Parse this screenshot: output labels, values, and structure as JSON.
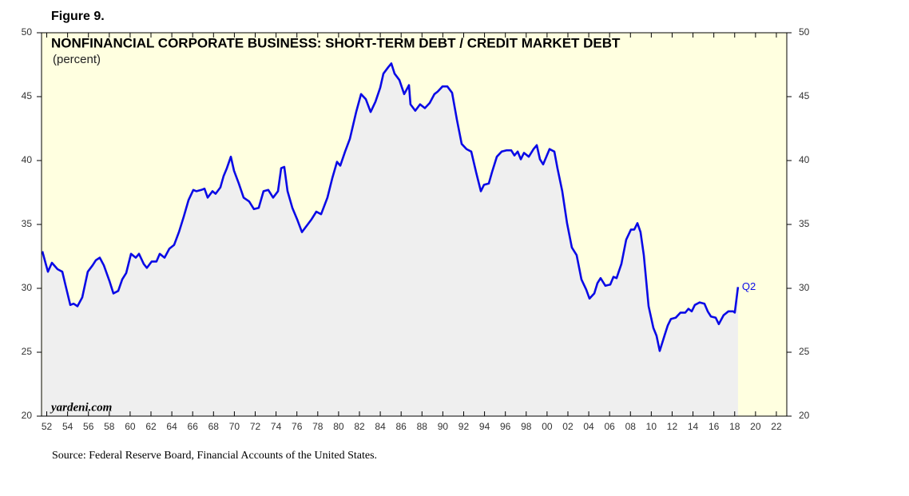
{
  "chart_data": {
    "type": "area-line",
    "figure_label": "Figure 9.",
    "title": "NONFINANCIAL CORPORATE BUSINESS: SHORT-TERM DEBT / CREDIT MARKET DEBT",
    "subtitle": "(percent)",
    "watermark": "yardeni.com",
    "end_label": "Q2",
    "source": "Source: Federal Reserve Board, Financial Accounts of the United States.",
    "color": "#0a0ae6",
    "area_color": "#efefef",
    "background": "#ffffe0",
    "x": [
      1951.58,
      1952.11,
      1952.5,
      1953.03,
      1953.49,
      1953.8,
      1954.26,
      1954.57,
      1954.95,
      1955.41,
      1955.94,
      1956.4,
      1956.71,
      1957.09,
      1957.48,
      1958.01,
      1958.4,
      1958.86,
      1959.24,
      1959.62,
      1960.08,
      1960.54,
      1960.85,
      1961.31,
      1961.61,
      1962.07,
      1962.53,
      1962.84,
      1963.3,
      1963.76,
      1964.22,
      1964.68,
      1965.14,
      1965.6,
      1966.06,
      1966.37,
      1966.83,
      1967.13,
      1967.44,
      1967.9,
      1968.2,
      1968.66,
      1968.97,
      1969.28,
      1969.66,
      1969.97,
      1970.43,
      1970.89,
      1971.42,
      1971.88,
      1972.34,
      1972.8,
      1973.26,
      1973.72,
      1974.18,
      1974.49,
      1974.79,
      1975.1,
      1975.56,
      1976.02,
      1976.48,
      1976.94,
      1977.4,
      1977.86,
      1978.32,
      1978.93,
      1979.39,
      1979.85,
      1980.16,
      1980.62,
      1981.08,
      1981.69,
      1982.15,
      1982.61,
      1983.07,
      1983.53,
      1983.99,
      1984.3,
      1984.76,
      1985.06,
      1985.37,
      1985.83,
      1986.29,
      1986.75,
      1986.9,
      1987.36,
      1987.82,
      1988.28,
      1988.74,
      1989.2,
      1989.51,
      1989.97,
      1990.43,
      1990.89,
      1991.35,
      1991.81,
      1992.27,
      1992.73,
      1993.19,
      1993.65,
      1993.95,
      1994.41,
      1994.72,
      1995.18,
      1995.64,
      1996.1,
      1996.56,
      1996.87,
      1997.18,
      1997.48,
      1997.79,
      1998.25,
      1998.71,
      1999.01,
      1999.32,
      1999.63,
      2000.24,
      2000.7,
      2001.0,
      2001.46,
      2001.92,
      2002.38,
      2002.84,
      2003.3,
      2003.76,
      2004.07,
      2004.53,
      2004.83,
      2005.14,
      2005.6,
      2006.06,
      2006.37,
      2006.67,
      2007.13,
      2007.59,
      2008.05,
      2008.36,
      2008.67,
      2008.97,
      2009.28,
      2009.74,
      2010.2,
      2010.5,
      2010.81,
      2011.27,
      2011.58,
      2011.88,
      2012.34,
      2012.8,
      2013.26,
      2013.57,
      2013.88,
      2014.18,
      2014.64,
      2015.1,
      2015.41,
      2015.72,
      2016.18,
      2016.48,
      2016.94,
      2017.4,
      2017.86,
      2018.01,
      2018.32
    ],
    "values": [
      32.9,
      31.3,
      32.0,
      31.5,
      31.3,
      30.25,
      28.7,
      28.8,
      28.6,
      29.3,
      31.3,
      31.8,
      32.2,
      32.4,
      31.8,
      30.6,
      29.6,
      29.8,
      30.7,
      31.2,
      32.7,
      32.4,
      32.7,
      31.9,
      31.6,
      32.1,
      32.1,
      32.7,
      32.4,
      33.1,
      33.4,
      34.4,
      35.6,
      36.9,
      37.7,
      37.6,
      37.7,
      37.8,
      37.1,
      37.6,
      37.4,
      37.9,
      38.8,
      39.4,
      40.3,
      39.2,
      38.2,
      37.1,
      36.8,
      36.2,
      36.3,
      37.6,
      37.7,
      37.1,
      37.6,
      39.4,
      39.5,
      37.6,
      36.3,
      35.4,
      34.4,
      34.9,
      35.4,
      36.0,
      35.8,
      37.1,
      38.6,
      39.9,
      39.6,
      40.7,
      41.7,
      43.8,
      45.2,
      44.8,
      43.8,
      44.6,
      45.7,
      46.8,
      47.3,
      47.6,
      46.8,
      46.3,
      45.2,
      45.9,
      44.4,
      43.9,
      44.4,
      44.1,
      44.5,
      45.2,
      45.4,
      45.8,
      45.8,
      45.3,
      43.2,
      41.3,
      40.9,
      40.7,
      39.1,
      37.6,
      38.1,
      38.2,
      39.1,
      40.3,
      40.7,
      40.8,
      40.8,
      40.4,
      40.7,
      40.1,
      40.6,
      40.3,
      40.9,
      41.2,
      40.1,
      39.7,
      40.9,
      40.7,
      39.4,
      37.6,
      35.1,
      33.2,
      32.6,
      30.7,
      29.9,
      29.2,
      29.6,
      30.4,
      30.8,
      30.2,
      30.3,
      30.9,
      30.8,
      31.9,
      33.8,
      34.6,
      34.6,
      35.1,
      34.4,
      32.6,
      28.6,
      26.9,
      26.3,
      25.1,
      26.3,
      27.1,
      27.6,
      27.7,
      28.1,
      28.1,
      28.4,
      28.2,
      28.7,
      28.9,
      28.8,
      28.2,
      27.8,
      27.7,
      27.2,
      27.9,
      28.2,
      28.2,
      28.1,
      30.1
    ],
    "xlim": [
      1951.5,
      2023
    ],
    "xticks": [
      {
        "value": 1952,
        "label": "52"
      },
      {
        "value": 1954,
        "label": "54"
      },
      {
        "value": 1956,
        "label": "56"
      },
      {
        "value": 1958,
        "label": "58"
      },
      {
        "value": 1960,
        "label": "60"
      },
      {
        "value": 1962,
        "label": "62"
      },
      {
        "value": 1964,
        "label": "64"
      },
      {
        "value": 1966,
        "label": "66"
      },
      {
        "value": 1968,
        "label": "68"
      },
      {
        "value": 1970,
        "label": "70"
      },
      {
        "value": 1972,
        "label": "72"
      },
      {
        "value": 1974,
        "label": "74"
      },
      {
        "value": 1976,
        "label": "76"
      },
      {
        "value": 1978,
        "label": "78"
      },
      {
        "value": 1980,
        "label": "80"
      },
      {
        "value": 1982,
        "label": "82"
      },
      {
        "value": 1984,
        "label": "84"
      },
      {
        "value": 1986,
        "label": "86"
      },
      {
        "value": 1988,
        "label": "88"
      },
      {
        "value": 1990,
        "label": "90"
      },
      {
        "value": 1992,
        "label": "92"
      },
      {
        "value": 1994,
        "label": "94"
      },
      {
        "value": 1996,
        "label": "96"
      },
      {
        "value": 1998,
        "label": "98"
      },
      {
        "value": 2000,
        "label": "00"
      },
      {
        "value": 2002,
        "label": "02"
      },
      {
        "value": 2004,
        "label": "04"
      },
      {
        "value": 2006,
        "label": "06"
      },
      {
        "value": 2008,
        "label": "08"
      },
      {
        "value": 2010,
        "label": "10"
      },
      {
        "value": 2012,
        "label": "12"
      },
      {
        "value": 2014,
        "label": "14"
      },
      {
        "value": 2016,
        "label": "16"
      },
      {
        "value": 2018,
        "label": "18"
      },
      {
        "value": 2020,
        "label": "20"
      },
      {
        "value": 2022,
        "label": "22"
      }
    ],
    "ylim": [
      20,
      50
    ],
    "yticks": [
      20,
      25,
      30,
      35,
      40,
      45,
      50
    ],
    "y2lim": [
      20,
      50
    ],
    "y2ticks": [
      20,
      25,
      30,
      35,
      40,
      45,
      50
    ]
  }
}
